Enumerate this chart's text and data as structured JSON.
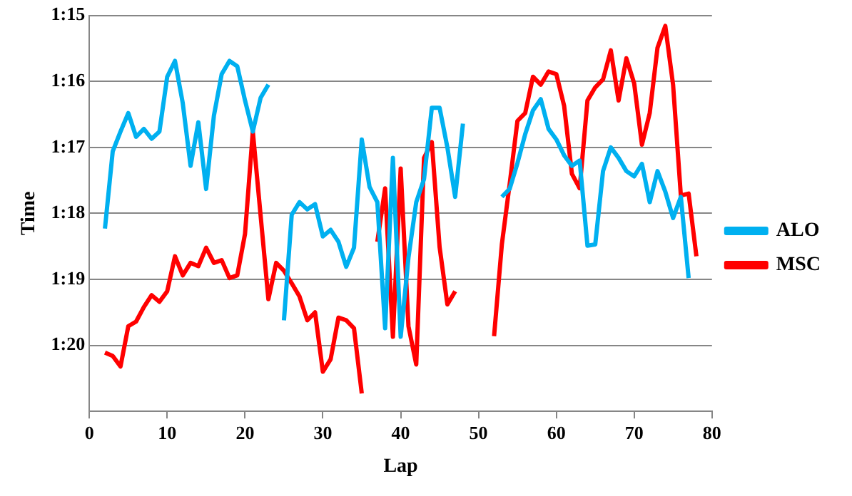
{
  "chart_data": {
    "type": "line",
    "xlabel": "Lap",
    "ylabel": "Time",
    "x": [
      2,
      3,
      4,
      5,
      6,
      7,
      8,
      9,
      10,
      11,
      12,
      13,
      14,
      15,
      16,
      17,
      18,
      19,
      20,
      21,
      22,
      23,
      24,
      25,
      26,
      27,
      28,
      29,
      30,
      31,
      32,
      33,
      34,
      35,
      36,
      37,
      38,
      39,
      40,
      41,
      42,
      43,
      44,
      45,
      46,
      47,
      48,
      52,
      53,
      54,
      55,
      56,
      57,
      58,
      59,
      60,
      61,
      62,
      63,
      64,
      65,
      66,
      67,
      68,
      69,
      70,
      71,
      72,
      73,
      74,
      75,
      76,
      77,
      78
    ],
    "series": [
      {
        "name": "ALO",
        "color": "#00b0f0",
        "values": [
          78.23,
          77.06,
          76.76,
          76.48,
          76.84,
          76.72,
          76.87,
          76.76,
          75.93,
          75.69,
          76.33,
          77.28,
          76.62,
          77.63,
          76.52,
          75.89,
          75.69,
          75.77,
          76.29,
          76.76,
          76.25,
          76.05,
          null,
          79.62,
          78.02,
          77.83,
          77.94,
          77.86,
          78.35,
          78.25,
          78.43,
          78.81,
          78.52,
          76.88,
          77.6,
          77.83,
          79.74,
          77.16,
          79.87,
          78.67,
          77.83,
          77.48,
          76.4,
          76.4,
          77.0,
          77.75,
          76.64,
          null,
          77.75,
          77.63,
          77.24,
          76.8,
          76.44,
          76.27,
          76.72,
          76.88,
          77.12,
          77.28,
          77.2,
          78.49,
          78.47,
          77.36,
          77.0,
          77.16,
          77.36,
          77.44,
          77.25,
          77.83,
          77.36,
          77.67,
          78.07,
          77.75,
          78.98,
          null
        ]
      },
      {
        "name": "MSC",
        "color": "#ff0000",
        "values": [
          80.11,
          80.16,
          80.32,
          79.71,
          79.64,
          79.42,
          79.24,
          79.34,
          79.18,
          78.65,
          78.94,
          78.75,
          78.8,
          78.52,
          78.75,
          78.71,
          78.98,
          78.94,
          78.31,
          76.76,
          78.03,
          79.3,
          78.75,
          78.87,
          79.06,
          79.26,
          79.62,
          79.5,
          80.4,
          80.21,
          79.58,
          79.62,
          79.74,
          80.73,
          null,
          78.43,
          77.62,
          79.87,
          77.32,
          79.71,
          80.29,
          77.16,
          76.92,
          78.51,
          79.38,
          79.18,
          null,
          79.86,
          78.47,
          77.56,
          76.6,
          76.48,
          75.93,
          76.05,
          75.85,
          75.89,
          76.37,
          77.4,
          77.62,
          76.29,
          76.09,
          75.97,
          75.53,
          76.29,
          75.65,
          76.03,
          76.96,
          76.48,
          75.49,
          75.16,
          76.05,
          77.73,
          77.7,
          78.65
        ]
      }
    ],
    "xlim": [
      0,
      80
    ],
    "xticks": [
      0,
      10,
      20,
      30,
      40,
      50,
      60,
      70,
      80
    ],
    "ylim": [
      81,
      75
    ],
    "yticks": [
      {
        "value": 75,
        "label": "1:15"
      },
      {
        "value": 76,
        "label": "1:16"
      },
      {
        "value": 77,
        "label": "1:17"
      },
      {
        "value": 78,
        "label": "1:18"
      },
      {
        "value": 79,
        "label": "1:19"
      },
      {
        "value": 80,
        "label": "1:20"
      },
      {
        "value": 81,
        "label": null
      }
    ],
    "grid": "y",
    "legend": "right",
    "marker": "none",
    "line_style": "solid"
  }
}
